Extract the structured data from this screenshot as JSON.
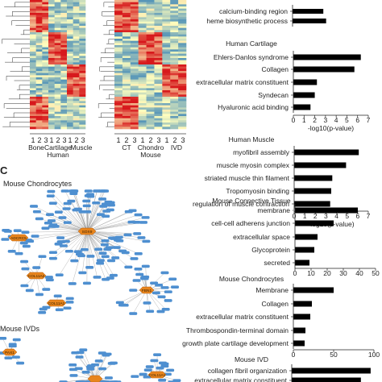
{
  "heatmap_human": {
    "tick_labels": [
      "1",
      "2",
      "3",
      "1",
      "2",
      "3",
      "1",
      "2",
      "3"
    ],
    "group_labels": [
      "Bone",
      "Cartilage",
      "Muscle"
    ],
    "species_label": "Human"
  },
  "heatmap_mouse": {
    "tick_labels": [
      "1",
      "2",
      "3",
      "1",
      "2",
      "3",
      "1",
      "2",
      "3"
    ],
    "group_labels": [
      "CT",
      "Chondro",
      "IVD"
    ],
    "species_label": "Mouse"
  },
  "panel_c": {
    "letter": "C",
    "title_top": "Mouse Chondrocytes",
    "title_bottom": "Mouse IVDs",
    "hub_labels_top": [
      "SOX9",
      "ADCRC5",
      "COL11A2",
      "COL11A1",
      "FBN1"
    ],
    "hub_labels_bottom": [
      "PAX1",
      "COL11A1"
    ]
  },
  "colors": {
    "bar": "#000000",
    "hub": "#e8851d",
    "node": "#4e8fd0",
    "edge": "#9a9a9a",
    "heat_low": "#2c7bb6",
    "heat_mid": "#ffffbf",
    "heat_high": "#d7191c"
  },
  "chart_data": [
    {
      "type": "bar",
      "orientation": "horizontal",
      "title": "",
      "categories": [
        "calcium-binding region",
        "heme biosynthetic process"
      ],
      "values": [
        3.3,
        3.6
      ],
      "xlabel": "",
      "xlim": [
        0,
        7
      ]
    },
    {
      "type": "bar",
      "orientation": "horizontal",
      "title": "Human Cartilage",
      "categories": [
        "Ehlers-Danlos syndrome",
        "Collagen",
        "extracellular matrix constituent",
        "Syndecan",
        "Hyaluronic acid binding"
      ],
      "values": [
        6.3,
        5.7,
        2.2,
        2.0,
        1.6
      ],
      "xlabel": "-log10(p-value)",
      "xlim": [
        0,
        7
      ],
      "xticks": [
        "0",
        "1",
        "2",
        "3",
        "4",
        "5",
        "6",
        "7"
      ]
    },
    {
      "type": "bar",
      "orientation": "horizontal",
      "title": "Human Muscle",
      "categories": [
        "myofibril assembly",
        "muscle myosin complex",
        "striated muscle thin filament",
        "Tropomyosin binding",
        "regulation of muscle contraction"
      ],
      "values": [
        6.1,
        4.9,
        3.6,
        3.5,
        3.4
      ],
      "xlabel": "-log10(p-value)",
      "xlim": [
        0,
        7
      ],
      "xticks": [
        "0",
        "1",
        "2",
        "3",
        "4",
        "5",
        "6",
        "7"
      ]
    },
    {
      "type": "bar",
      "orientation": "horizontal",
      "title": "Mouse Connective Tissue",
      "categories": [
        "membrane",
        "cell-cell adherens junction",
        "extracellular space",
        "Glycoprotein",
        "secreted"
      ],
      "values": [
        39,
        24,
        14,
        12,
        9
      ],
      "xlabel": "-log10(p-value)",
      "xlim": [
        0,
        50
      ],
      "xticks": [
        "0",
        "10",
        "20",
        "30",
        "40",
        "50"
      ]
    },
    {
      "type": "bar",
      "orientation": "horizontal",
      "title": "Mouse Chondrocytes",
      "categories": [
        "Membrane",
        "Collagen",
        "extracellular matrix constituent",
        "Thrombospondin-terminal domain",
        "growth plate cartilage development"
      ],
      "values": [
        50,
        23,
        21,
        15,
        14
      ],
      "xlabel": "-log10(p-value)",
      "xlim": [
        0,
        100
      ],
      "xticks": [
        "0",
        "50",
        "100"
      ]
    },
    {
      "type": "bar",
      "orientation": "horizontal",
      "title": "Mouse IVD",
      "categories": [
        "collagen fibril organization",
        "extracellular matrix constituent"
      ],
      "values": [
        8.9,
        7.8
      ],
      "xlabel": "",
      "xlim": [
        0,
        10
      ]
    }
  ]
}
